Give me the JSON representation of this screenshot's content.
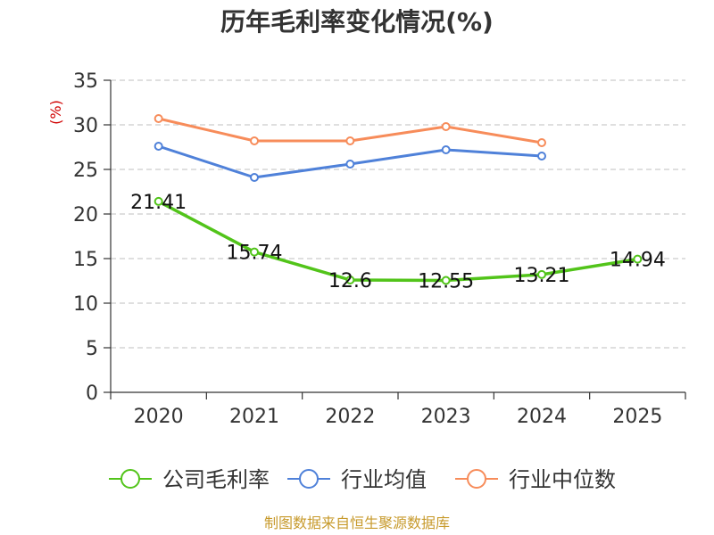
{
  "chart_data": {
    "type": "line",
    "title": "历年毛利率变化情况(%)",
    "ylabel": "(%)",
    "xlabel": "",
    "categories": [
      "2020",
      "2021",
      "2022",
      "2023",
      "2024",
      "2025"
    ],
    "ylim": [
      0,
      35
    ],
    "yticks": [
      0,
      5,
      10,
      15,
      20,
      25,
      30,
      35
    ],
    "grid": true,
    "legend_position": "bottom",
    "series": [
      {
        "name": "公司毛利率",
        "color": "#52c41a",
        "values": [
          21.41,
          15.74,
          12.6,
          12.55,
          13.21,
          14.94
        ],
        "labels": [
          "21.41",
          "15.74",
          "12.6",
          "12.55",
          "13.21",
          "14.94"
        ]
      },
      {
        "name": "行业均值",
        "color": "#4f81d9",
        "values": [
          27.6,
          24.1,
          25.6,
          27.2,
          26.5,
          null
        ]
      },
      {
        "name": "行业中位数",
        "color": "#f78c5a",
        "values": [
          30.7,
          28.2,
          28.2,
          29.8,
          28.0,
          null
        ]
      }
    ]
  },
  "footer": {
    "source": "制图数据来自恒生聚源数据库"
  }
}
